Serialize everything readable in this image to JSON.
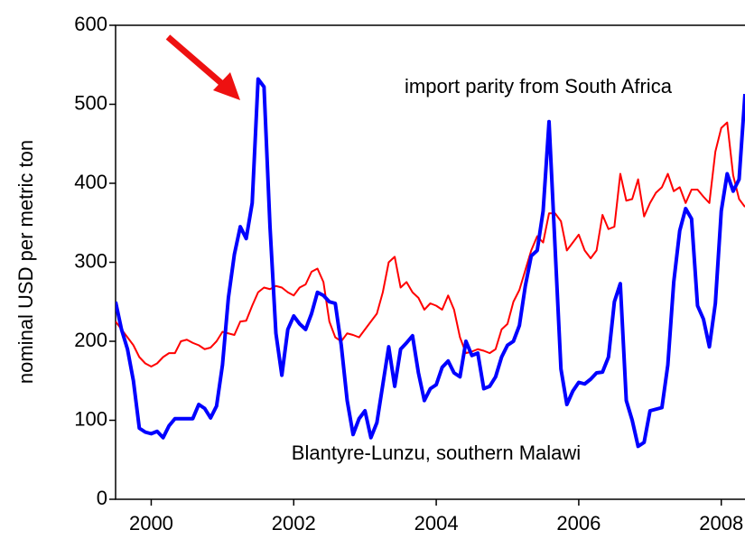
{
  "chart_data": {
    "type": "line",
    "y_label": "nominal USD per metric ton",
    "x": [
      2000,
      2000.083,
      2000.167,
      2000.25,
      2000.333,
      2000.417,
      2000.5,
      2000.583,
      2000.667,
      2000.75,
      2000.833,
      2000.917,
      2001,
      2001.083,
      2001.167,
      2001.25,
      2001.333,
      2001.417,
      2001.5,
      2001.583,
      2001.667,
      2001.75,
      2001.833,
      2001.917,
      2002,
      2002.083,
      2002.167,
      2002.25,
      2002.333,
      2002.417,
      2002.5,
      2002.583,
      2002.667,
      2002.75,
      2002.833,
      2002.917,
      2003,
      2003.083,
      2003.167,
      2003.25,
      2003.333,
      2003.417,
      2003.5,
      2003.583,
      2003.667,
      2003.75,
      2003.833,
      2003.917,
      2004,
      2004.083,
      2004.167,
      2004.25,
      2004.333,
      2004.417,
      2004.5,
      2004.583,
      2004.667,
      2004.75,
      2004.833,
      2004.917,
      2005,
      2005.083,
      2005.167,
      2005.25,
      2005.333,
      2005.417,
      2005.5,
      2005.583,
      2005.667,
      2005.75,
      2005.833,
      2005.917,
      2006,
      2006.083,
      2006.167,
      2006.25,
      2006.333,
      2006.417,
      2006.5,
      2006.583,
      2006.667,
      2006.75,
      2006.833,
      2006.917,
      2007,
      2007.083,
      2007.167,
      2007.25,
      2007.333,
      2007.417,
      2007.5,
      2007.583,
      2007.667,
      2007.75,
      2007.833,
      2007.917,
      2008,
      2008.083,
      2008.167,
      2008.25,
      2008.333,
      2008.417,
      2008.5,
      2008.583,
      2008.667,
      2008.75,
      2008.833
    ],
    "series": [
      {
        "name": "import parity from South Africa",
        "color": "#ff0000",
        "width": 2,
        "values": [
          225,
          215,
          205,
          195,
          180,
          172,
          168,
          172,
          180,
          185,
          185,
          200,
          202,
          198,
          195,
          190,
          192,
          200,
          212,
          210,
          208,
          225,
          226,
          245,
          262,
          268,
          266,
          270,
          268,
          262,
          258,
          268,
          272,
          288,
          292,
          275,
          225,
          205,
          200,
          210,
          208,
          205,
          215,
          225,
          235,
          262,
          300,
          307,
          268,
          275,
          262,
          255,
          240,
          248,
          245,
          240,
          258,
          240,
          205,
          185,
          187,
          190,
          188,
          185,
          190,
          215,
          222,
          250,
          265,
          290,
          315,
          333,
          325,
          362,
          362,
          352,
          315,
          325,
          335,
          315,
          305,
          315,
          360,
          342,
          345,
          412,
          378,
          380,
          405,
          358,
          375,
          388,
          395,
          412,
          390,
          395,
          375,
          392,
          392,
          383,
          375,
          440,
          470,
          477,
          410,
          380,
          370
        ]
      },
      {
        "name": "Blantyre-Lunzu, southern Malawi",
        "color": "#0000ff",
        "width": 4,
        "values": [
          250,
          215,
          190,
          150,
          90,
          85,
          83,
          86,
          78,
          93,
          102,
          102,
          102,
          102,
          120,
          115,
          103,
          118,
          170,
          255,
          310,
          345,
          330,
          375,
          532,
          522,
          345,
          210,
          157,
          215,
          232,
          222,
          215,
          235,
          262,
          258,
          250,
          248,
          195,
          125,
          82,
          102,
          112,
          78,
          97,
          145,
          193,
          143,
          190,
          198,
          207,
          160,
          125,
          140,
          145,
          167,
          175,
          160,
          155,
          200,
          182,
          185,
          140,
          143,
          155,
          180,
          195,
          200,
          220,
          270,
          308,
          315,
          365,
          478,
          320,
          165,
          120,
          137,
          148,
          146,
          152,
          160,
          161,
          180,
          250,
          273,
          125,
          100,
          67,
          72,
          112,
          114,
          116,
          170,
          275,
          340,
          368,
          355,
          245,
          228,
          193,
          248,
          365,
          412,
          390,
          405,
          513
        ]
      }
    ],
    "xlim": [
      2000,
      2008.833
    ],
    "xticks": [
      {
        "value": 2000.5,
        "label": "2000"
      },
      {
        "value": 2002.5,
        "label": "2002"
      },
      {
        "value": 2004.5,
        "label": "2004"
      },
      {
        "value": 2006.5,
        "label": "2006"
      },
      {
        "value": 2008.5,
        "label": "2008"
      }
    ],
    "ylim": [
      0,
      600
    ],
    "yticks": [
      0,
      100,
      200,
      300,
      400,
      500,
      600
    ]
  }
}
